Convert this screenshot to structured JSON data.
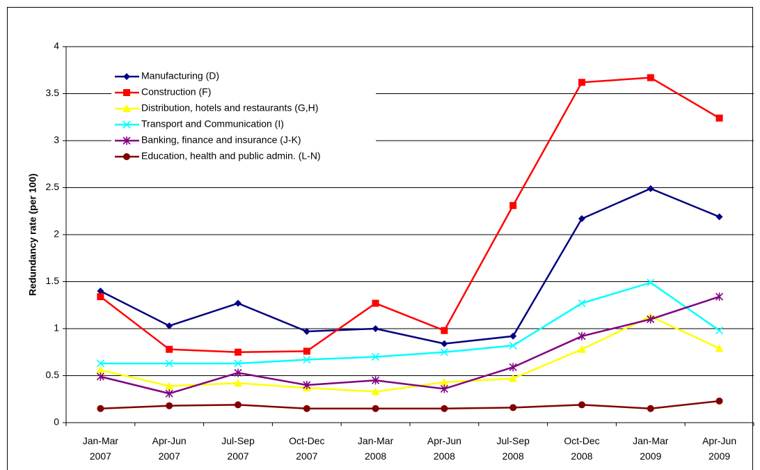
{
  "chart_data": {
    "type": "line",
    "y_label": "Redundancy rate (per 100)",
    "categories": [
      "Jan-Mar 2007",
      "Apr-Jun 2007",
      "Jul-Sep 2007",
      "Oct-Dec 2007",
      "Jan-Mar 2008",
      "Apr-Jun 2008",
      "Jul-Sep 2008",
      "Oct-Dec 2008",
      "Jan-Mar 2009",
      "Apr-Jun 2009"
    ],
    "series": [
      {
        "name": "Manufacturing (D)",
        "color": "#000080",
        "marker": "diamond",
        "values": [
          1.4,
          1.03,
          1.27,
          0.97,
          1.0,
          0.84,
          0.92,
          2.17,
          2.49,
          2.19
        ]
      },
      {
        "name": "Construction (F)",
        "color": "#ff0000",
        "marker": "square",
        "values": [
          1.34,
          0.78,
          0.75,
          0.76,
          1.27,
          0.98,
          2.31,
          3.62,
          3.67,
          3.24
        ]
      },
      {
        "name": "Distribution, hotels and restaurants (G,H)",
        "color": "#ffff00",
        "marker": "triangle",
        "values": [
          0.56,
          0.39,
          0.42,
          0.37,
          0.33,
          0.43,
          0.47,
          0.78,
          1.13,
          0.79
        ]
      },
      {
        "name": "Transport and Communication (I)",
        "color": "#00ffff",
        "marker": "x",
        "values": [
          0.63,
          0.63,
          0.63,
          0.67,
          0.7,
          0.75,
          0.82,
          1.27,
          1.49,
          0.98
        ]
      },
      {
        "name": "Banking, finance and insurance (J-K)",
        "color": "#800080",
        "marker": "asterisk",
        "values": [
          0.49,
          0.31,
          0.53,
          0.4,
          0.45,
          0.36,
          0.59,
          0.92,
          1.1,
          1.34
        ]
      },
      {
        "name": "Education, health and public admin. (L-N)",
        "color": "#800000",
        "marker": "circle",
        "values": [
          0.15,
          0.18,
          0.19,
          0.15,
          0.15,
          0.15,
          0.16,
          0.19,
          0.15,
          0.23
        ]
      }
    ],
    "ylim": [
      0,
      4
    ],
    "yticks": [
      0,
      0.5,
      1,
      1.5,
      2,
      2.5,
      3,
      3.5,
      4
    ],
    "grid": true,
    "legend": "upper-left"
  }
}
